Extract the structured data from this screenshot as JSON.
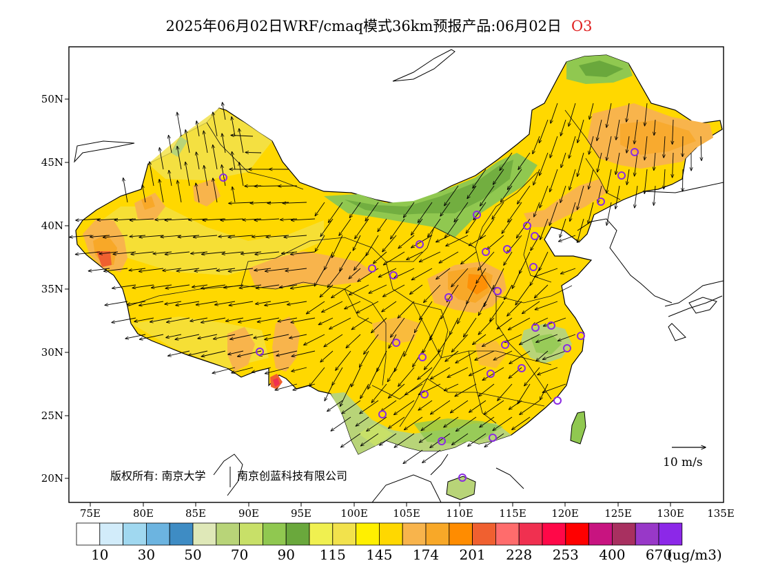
{
  "title": {
    "main": "2025年06月02日WRF/cmaq模式36km预报产品:06月02日",
    "species": "O3"
  },
  "map": {
    "lat_labels": [
      "50N",
      "45N",
      "40N",
      "35N",
      "30N",
      "25N",
      "20N"
    ],
    "lon_labels": [
      "75E",
      "80E",
      "85E",
      "90E",
      "95E",
      "100E",
      "105E",
      "110E",
      "115E",
      "120E",
      "125E",
      "130E",
      "135E"
    ],
    "copyright_left": "版权所有: 南京大学",
    "copyright_right": "南京创蓝科技有限公司",
    "wind_reference": "10 m/s"
  },
  "legend": {
    "colors": [
      "#ffffff",
      "#d2ecfa",
      "#a0d8f0",
      "#6cb4e0",
      "#3e8cc4",
      "#dfe8b8",
      "#b8d478",
      "#c8e068",
      "#90c850",
      "#6aa83c",
      "#f0f050",
      "#f2e24c",
      "#fff000",
      "#ffd800",
      "#f8b44c",
      "#f8a828",
      "#ff8c00",
      "#f06030",
      "#ff6c6c",
      "#f03050",
      "#ff0848",
      "#ff0000",
      "#c81480",
      "#a83060",
      "#9838c8",
      "#8c28e8"
    ],
    "labels": [
      "10",
      "30",
      "50",
      "70",
      "90",
      "115",
      "145",
      "174",
      "201",
      "228",
      "253",
      "400",
      "670"
    ],
    "unit": "(ug/m3)"
  }
}
